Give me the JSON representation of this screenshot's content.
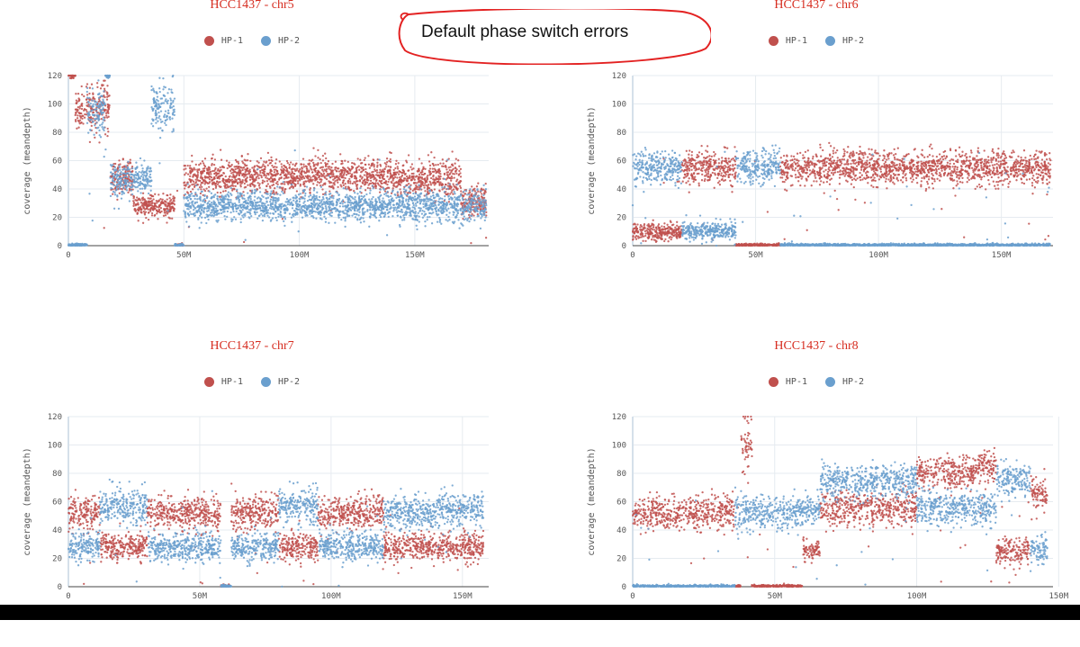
{
  "colors": {
    "hp1": "#c0504d",
    "hp2": "#6a9fce",
    "title": "#d62d20",
    "annotation": "#e32222"
  },
  "annotation": {
    "text": "Default phase switch errors"
  },
  "chart_data": [
    {
      "type": "scatter",
      "title": "HCC1437 - chr5",
      "ylabel": "coverage (meandepth)",
      "xlabel": "",
      "legend": [
        "HP-1",
        "HP-2"
      ],
      "legend_position": "top",
      "xlim": [
        0,
        182000000
      ],
      "ylim": [
        0,
        120
      ],
      "xticks": [
        0,
        50000000,
        100000000,
        150000000
      ],
      "xtick_labels": [
        "0",
        "50M",
        "100M",
        "150M"
      ],
      "yticks": [
        0,
        20,
        40,
        60,
        80,
        100,
        120
      ],
      "grid": true,
      "series": [
        {
          "name": "HP-1",
          "segments": [
            [
              0,
              3,
              120,
              1
            ],
            [
              3,
              18,
              96,
              8
            ],
            [
              18,
              28,
              48,
              6
            ],
            [
              28,
              46,
              28,
              4
            ],
            [
              46,
              50,
              0,
              1
            ],
            [
              50,
              72,
              48,
              6
            ],
            [
              72,
              140,
              50,
              6
            ],
            [
              140,
              155,
              47,
              5
            ],
            [
              155,
              170,
              47,
              6
            ],
            [
              170,
              181,
              30,
              6
            ]
          ]
        },
        {
          "name": "HP-2",
          "segments": [
            [
              0,
              3,
              0,
              1
            ],
            [
              3,
              8,
              0,
              1
            ],
            [
              8,
              16,
              95,
              8
            ],
            [
              16,
              18,
              120,
              1
            ],
            [
              18,
              28,
              45,
              6
            ],
            [
              28,
              36,
              47,
              5
            ],
            [
              36,
              46,
              97,
              8
            ],
            [
              46,
              50,
              0,
              1
            ],
            [
              50,
              72,
              28,
              5
            ],
            [
              72,
              140,
              28,
              5
            ],
            [
              140,
              181,
              28,
              6
            ]
          ]
        }
      ]
    },
    {
      "type": "scatter",
      "title": "HCC1437 - chr6",
      "ylabel": "coverage (meandepth)",
      "xlabel": "",
      "legend": [
        "HP-1",
        "HP-2"
      ],
      "legend_position": "top",
      "xlim": [
        0,
        171000000
      ],
      "ylim": [
        0,
        120
      ],
      "xticks": [
        0,
        50000000,
        100000000,
        150000000
      ],
      "xtick_labels": [
        "0",
        "50M",
        "100M",
        "150M"
      ],
      "yticks": [
        0,
        20,
        40,
        60,
        80,
        100,
        120
      ],
      "grid": true,
      "series": [
        {
          "name": "HP-1",
          "segments": [
            [
              0,
              20,
              10,
              3
            ],
            [
              20,
              30,
              55,
              6
            ],
            [
              30,
              42,
              55,
              6
            ],
            [
              42,
              60,
              0,
              1
            ],
            [
              60,
              100,
              55,
              6
            ],
            [
              100,
              170,
              55,
              6
            ]
          ]
        },
        {
          "name": "HP-2",
          "segments": [
            [
              0,
              20,
              55,
              6
            ],
            [
              20,
              42,
              10,
              3
            ],
            [
              42,
              60,
              55,
              6
            ],
            [
              60,
              100,
              0,
              1
            ],
            [
              100,
              170,
              0,
              1
            ]
          ]
        }
      ]
    },
    {
      "type": "scatter",
      "title": "HCC1437 - chr7",
      "ylabel": "coverage (meandepth)",
      "xlabel": "",
      "legend": [
        "HP-1",
        "HP-2"
      ],
      "legend_position": "top",
      "xlim": [
        0,
        160000000
      ],
      "ylim": [
        0,
        120
      ],
      "xticks": [
        0,
        50000000,
        100000000,
        150000000
      ],
      "xtick_labels": [
        "0",
        "50M",
        "100M",
        "150M"
      ],
      "yticks": [
        0,
        20,
        40,
        60,
        80,
        100,
        120
      ],
      "grid": true,
      "series": [
        {
          "name": "HP-1",
          "segments": [
            [
              0,
              12,
              52,
              6
            ],
            [
              12,
              30,
              28,
              5
            ],
            [
              30,
              58,
              52,
              6
            ],
            [
              58,
              62,
              0,
              1
            ],
            [
              62,
              80,
              52,
              6
            ],
            [
              80,
              95,
              28,
              5
            ],
            [
              95,
              120,
              52,
              6
            ],
            [
              120,
              140,
              28,
              5
            ],
            [
              140,
              158,
              28,
              5
            ]
          ]
        },
        {
          "name": "HP-2",
          "segments": [
            [
              0,
              12,
              28,
              5
            ],
            [
              12,
              30,
              57,
              6
            ],
            [
              30,
              58,
              28,
              5
            ],
            [
              58,
              62,
              0,
              1
            ],
            [
              62,
              80,
              28,
              5
            ],
            [
              80,
              95,
              57,
              6
            ],
            [
              95,
              120,
              28,
              5
            ],
            [
              120,
              140,
              52,
              6
            ],
            [
              140,
              158,
              55,
              6
            ]
          ]
        }
      ]
    },
    {
      "type": "scatter",
      "title": "HCC1437 - chr8",
      "ylabel": "coverage (meandepth)",
      "xlabel": "",
      "legend": [
        "HP-1",
        "HP-2"
      ],
      "legend_position": "top",
      "xlim": [
        0,
        148000000
      ],
      "ylim": [
        0,
        120
      ],
      "xticks": [
        0,
        50000000,
        100000000,
        150000000
      ],
      "xtick_labels": [
        "0",
        "50M",
        "100M",
        "150M"
      ],
      "yticks": [
        0,
        20,
        40,
        60,
        80,
        100,
        120
      ],
      "grid": true,
      "series": [
        {
          "name": "HP-1",
          "segments": [
            [
              0,
              36,
              52,
              6
            ],
            [
              36,
              38,
              0,
              1
            ],
            [
              38,
              42,
              100,
              10
            ],
            [
              42,
              60,
              0,
              1
            ],
            [
              60,
              66,
              25,
              4
            ],
            [
              66,
              100,
              55,
              6
            ],
            [
              100,
              120,
              80,
              6
            ],
            [
              120,
              128,
              85,
              6
            ],
            [
              128,
              140,
              25,
              5
            ],
            [
              140,
              146,
              65,
              6
            ]
          ]
        },
        {
          "name": "HP-2",
          "segments": [
            [
              0,
              36,
              0,
              1
            ],
            [
              36,
              38,
              52,
              6
            ],
            [
              38,
              42,
              52,
              6
            ],
            [
              42,
              60,
              52,
              6
            ],
            [
              60,
              66,
              55,
              5
            ],
            [
              66,
              100,
              75,
              6
            ],
            [
              100,
              128,
              55,
              6
            ],
            [
              128,
              140,
              75,
              6
            ],
            [
              140,
              146,
              25,
              5
            ]
          ]
        }
      ]
    }
  ]
}
